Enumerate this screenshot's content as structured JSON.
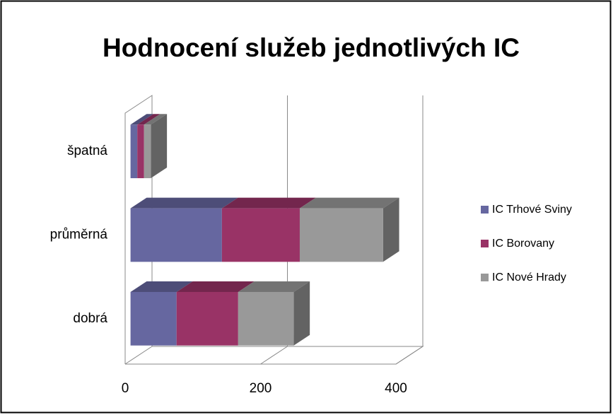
{
  "chart_data": {
    "type": "bar3d_stacked_horizontal",
    "title": "Hodnocení služeb jednotlivých IC",
    "categories": [
      "dobrá",
      "průměrná",
      "špatná"
    ],
    "series": [
      {
        "name": "IC Trhové Sviny",
        "color": "#6667a0",
        "values": [
          68,
          135,
          10
        ]
      },
      {
        "name": "IC Borovany",
        "color": "#993366",
        "values": [
          91,
          115,
          10
        ]
      },
      {
        "name": "IC Nové Hrady",
        "color": "#999999",
        "values": [
          82,
          123,
          10
        ]
      }
    ],
    "xlim": [
      0,
      400
    ],
    "xticks": [
      0,
      200,
      400
    ],
    "grid": true,
    "legend": "right"
  }
}
